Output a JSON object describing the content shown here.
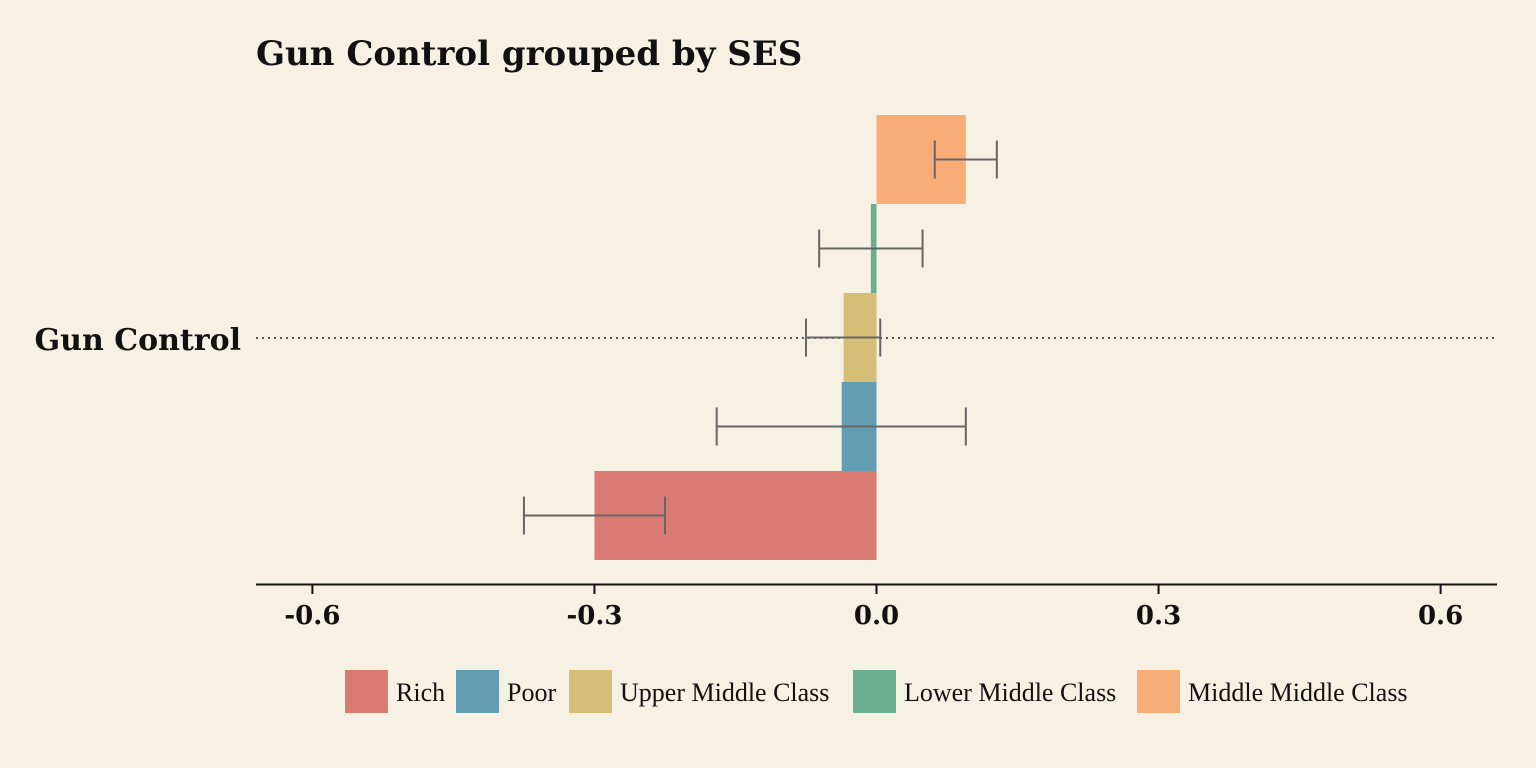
{
  "chart_data": {
    "type": "bar",
    "orientation": "horizontal",
    "title": "Gun Control grouped by SES",
    "categories": [
      "Gun Control"
    ],
    "xlabel": "",
    "ylabel": "",
    "xlim": [
      -0.66,
      0.66
    ],
    "xticks": [
      -0.6,
      -0.3,
      0.0,
      0.3,
      0.6
    ],
    "xtick_labels": [
      "-0.6",
      "-0.3",
      "0.0",
      "0.3",
      "0.6"
    ],
    "grid": false,
    "legend_position": "bottom",
    "series": [
      {
        "name": "Rich",
        "values": [
          -0.3
        ],
        "error_low": [
          -0.375
        ],
        "error_high": [
          -0.225
        ],
        "color": "#d97a73"
      },
      {
        "name": "Poor",
        "values": [
          -0.037
        ],
        "error_low": [
          -0.17
        ],
        "error_high": [
          0.095
        ],
        "color": "#639db4"
      },
      {
        "name": "Upper Middle Class",
        "values": [
          -0.035
        ],
        "error_low": [
          -0.075
        ],
        "error_high": [
          0.004
        ],
        "color": "#d5bf77"
      },
      {
        "name": "Lower Middle Class",
        "values": [
          -0.006
        ],
        "error_low": [
          -0.061
        ],
        "error_high": [
          0.049
        ],
        "color": "#6aaf8f"
      },
      {
        "name": "Middle Middle Class",
        "values": [
          0.095
        ],
        "error_low": [
          0.062
        ],
        "error_high": [
          0.128
        ],
        "color": "#f8ad77"
      }
    ]
  }
}
